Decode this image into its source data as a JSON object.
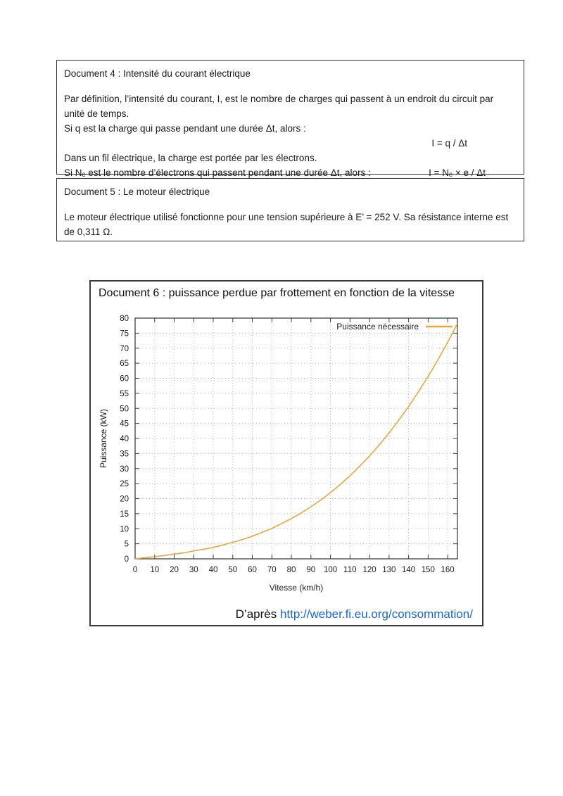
{
  "doc4": {
    "title": "Document 4 : Intensité du courant électrique",
    "paragraph": "Par définition, l’intensité du courant, I, est le nombre de charges qui passent à un endroit du circuit par unité de temps.",
    "line_q": "Si q est la charge qui passe pendant une durée Δt, alors :",
    "eq_current": "I = q / Δt",
    "line_wire": "Dans un fil électrique, la charge est portée par les électrons.",
    "line_electrons": "Si Nₑ est le nombre d’électrons qui passent pendant une durée Δt, alors :",
    "eq_electrons": "I = Nₑ × e / Δt"
  },
  "doc5": {
    "title": "Document 5 : Le moteur électrique",
    "body": "Le moteur électrique utilisé fonctionne pour une tension supérieure à E’ = 252 V. Sa résistance interne est de 0,311 Ω."
  },
  "doc6": {
    "title": "Document 6 : puissance perdue par frottement en fonction de la vitesse",
    "source_prefix": "D’après ",
    "source_link": "http://weber.fi.eu.org/consommation/"
  },
  "colors": {
    "curve": "#e9a63f",
    "grid": "#b8b8b8",
    "frame": "#3f3f3f",
    "text": "#1a1a1a",
    "link": "#1a66cc"
  },
  "chart_data": {
    "type": "line",
    "title": "",
    "xlabel": "Vitesse (km/h)",
    "ylabel": "Puissance (kW)",
    "xlim": [
      0,
      165
    ],
    "ylim": [
      0,
      80
    ],
    "xticks": [
      0,
      10,
      20,
      30,
      40,
      50,
      60,
      70,
      80,
      90,
      100,
      110,
      120,
      130,
      140,
      150,
      160
    ],
    "yticks": [
      0,
      5,
      10,
      15,
      20,
      25,
      30,
      35,
      40,
      45,
      50,
      55,
      60,
      65,
      70,
      75,
      80
    ],
    "grid": true,
    "legend_position": "top-right-inside",
    "series": [
      {
        "name": "Puissance nécessaire",
        "color": "#e9a63f",
        "x": [
          0,
          5,
          10,
          15,
          20,
          25,
          30,
          35,
          40,
          45,
          50,
          55,
          60,
          65,
          70,
          75,
          80,
          85,
          90,
          95,
          100,
          105,
          110,
          115,
          120,
          125,
          130,
          135,
          140,
          145,
          150,
          155,
          160,
          165
        ],
        "y": [
          0,
          0.4,
          0.7,
          1.1,
          1.6,
          2.0,
          2.6,
          3.2,
          3.8,
          4.6,
          5.5,
          6.4,
          7.5,
          8.8,
          10.1,
          11.7,
          13.4,
          15.2,
          17.3,
          19.5,
          22.0,
          24.7,
          27.6,
          30.8,
          34.2,
          37.9,
          41.8,
          46.1,
          50.6,
          55.5,
          60.6,
          66.1,
          72.0,
          78.2
        ]
      }
    ]
  }
}
